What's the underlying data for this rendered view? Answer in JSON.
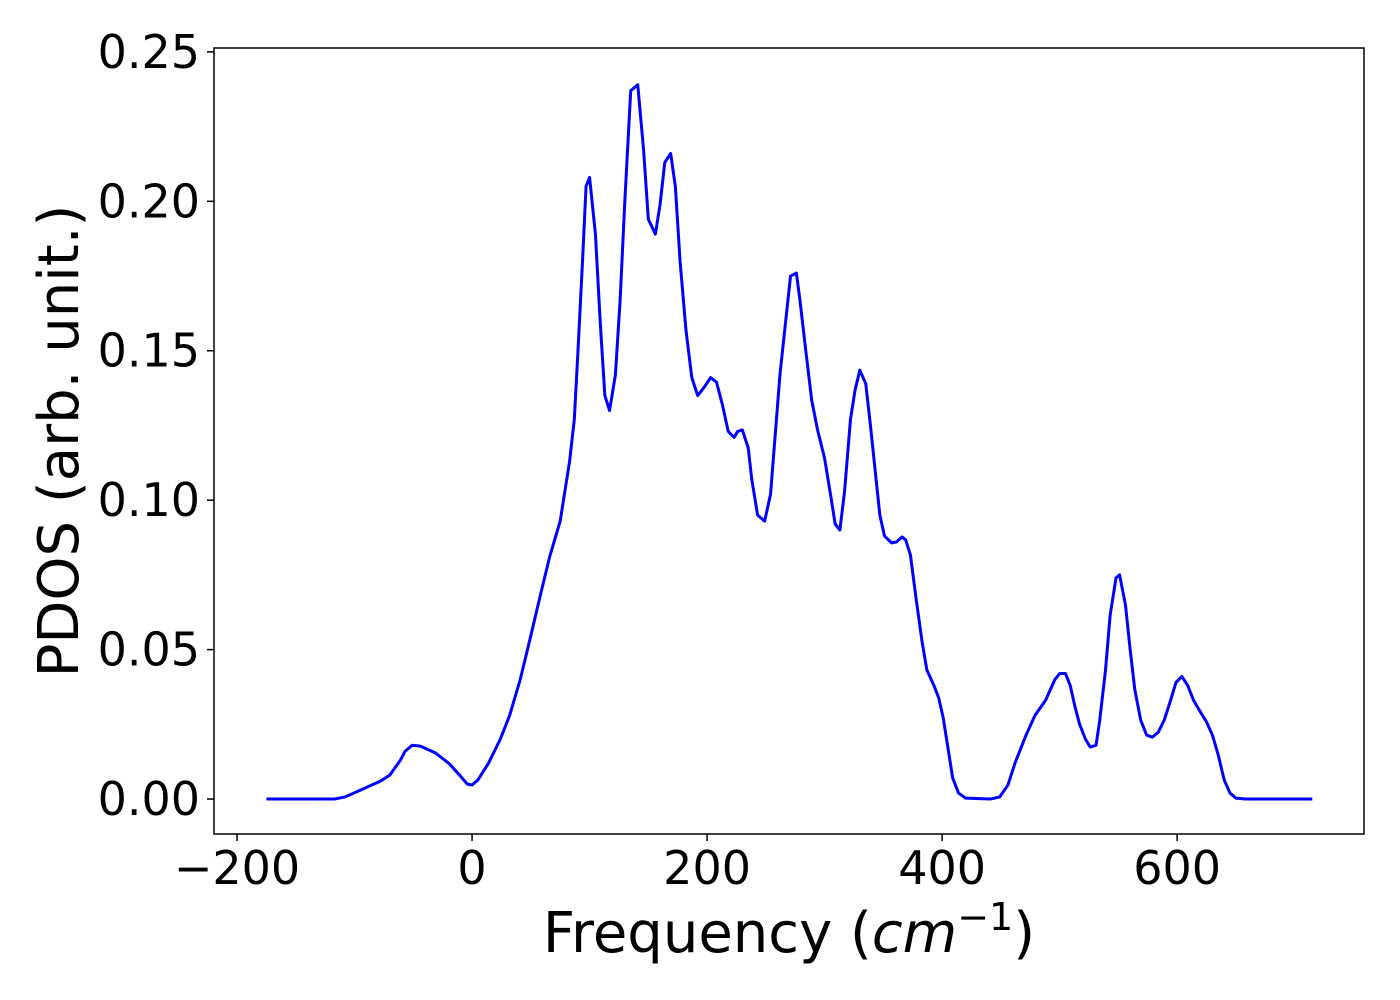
{
  "chart_data": {
    "type": "line",
    "xlabel": [
      "Frequency (",
      "cm",
      "−1",
      ")"
    ],
    "ylabel": "PDOS (arb. unit.)",
    "color": "#0000ff",
    "x": [
      -175,
      -117,
      -108,
      -95,
      -78,
      -70,
      -61,
      -57,
      -51,
      -44,
      -31,
      -19,
      -10,
      -4,
      0,
      5,
      14,
      24,
      32,
      41,
      49,
      58,
      66,
      75,
      79,
      83,
      87,
      90,
      94,
      97,
      100,
      105,
      109,
      113,
      117,
      122,
      126,
      130,
      135,
      141,
      146,
      150,
      156,
      160,
      164,
      169,
      173,
      177,
      182,
      187,
      192,
      197,
      203,
      208,
      213,
      218,
      223,
      226,
      230,
      235,
      238,
      243,
      249,
      254,
      259,
      262,
      268,
      271,
      276,
      279,
      284,
      289,
      294,
      300,
      305,
      309,
      313,
      317,
      322,
      326,
      330,
      335,
      339,
      343,
      347,
      351,
      357,
      361,
      366,
      369,
      373,
      378,
      383,
      387,
      393,
      397,
      401,
      405,
      409,
      414,
      420,
      441,
      449,
      456,
      462,
      471,
      479,
      488,
      496,
      500,
      505,
      509,
      513,
      517,
      522,
      526,
      531,
      534,
      539,
      543,
      548,
      551,
      556,
      560,
      564,
      569,
      574,
      579,
      584,
      589,
      594,
      599,
      604,
      609,
      614,
      620,
      625,
      630,
      635,
      640,
      645,
      650,
      658,
      715
    ],
    "values": [
      0,
      0,
      0.0007,
      0.003,
      0.006,
      0.008,
      0.013,
      0.016,
      0.018,
      0.0177,
      0.0154,
      0.0117,
      0.0077,
      0.005,
      0.0047,
      0.0064,
      0.012,
      0.02,
      0.028,
      0.04,
      0.053,
      0.068,
      0.081,
      0.093,
      0.103,
      0.113,
      0.127,
      0.149,
      0.18,
      0.205,
      0.208,
      0.189,
      0.16,
      0.135,
      0.13,
      0.142,
      0.167,
      0.2,
      0.237,
      0.239,
      0.217,
      0.194,
      0.189,
      0.199,
      0.213,
      0.216,
      0.205,
      0.18,
      0.157,
      0.141,
      0.135,
      0.1375,
      0.141,
      0.1395,
      0.132,
      0.123,
      0.121,
      0.123,
      0.1235,
      0.1175,
      0.107,
      0.095,
      0.093,
      0.102,
      0.127,
      0.142,
      0.164,
      0.175,
      0.176,
      0.167,
      0.15,
      0.1335,
      0.1235,
      0.114,
      0.102,
      0.092,
      0.09,
      0.103,
      0.127,
      0.137,
      0.1435,
      0.139,
      0.125,
      0.11,
      0.095,
      0.088,
      0.0857,
      0.086,
      0.0877,
      0.0867,
      0.0817,
      0.0666,
      0.0525,
      0.0432,
      0.038,
      0.034,
      0.027,
      0.017,
      0.007,
      0.002,
      0.0003,
      0,
      0.0007,
      0.0047,
      0.012,
      0.021,
      0.028,
      0.033,
      0.04,
      0.042,
      0.042,
      0.038,
      0.031,
      0.025,
      0.02,
      0.0174,
      0.018,
      0.026,
      0.043,
      0.0616,
      0.074,
      0.075,
      0.065,
      0.05,
      0.0365,
      0.0264,
      0.0214,
      0.0207,
      0.0224,
      0.0264,
      0.0325,
      0.039,
      0.041,
      0.038,
      0.033,
      0.029,
      0.0258,
      0.0214,
      0.0147,
      0.0064,
      0.002,
      0.0003,
      0,
      0
    ],
    "xlim": [
      -219.6,
      759
    ],
    "ylim": [
      -0.0117,
      0.2513
    ],
    "xticks": [
      {
        "value": -200,
        "label": "−200"
      },
      0,
      200,
      400,
      600
    ],
    "yticks": [
      {
        "value": 0,
        "label": "0.00"
      },
      {
        "value": 0.05,
        "label": "0.05"
      },
      {
        "value": 0.1,
        "label": "0.10"
      },
      {
        "value": 0.15,
        "label": "0.15"
      },
      {
        "value": 0.2,
        "label": "0.20"
      },
      {
        "value": 0.25,
        "label": "0.25"
      }
    ]
  }
}
